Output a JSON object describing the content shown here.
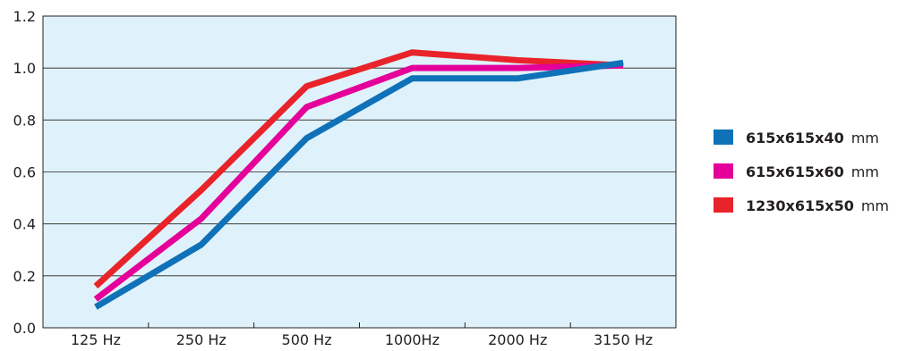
{
  "chart_data": {
    "type": "line",
    "categories": [
      "125 Hz",
      "250 Hz",
      "500 Hz",
      "1000Hz",
      "2000 Hz",
      "3150 Hz"
    ],
    "ylim": [
      0,
      1.2
    ],
    "yticks": [
      "0.0",
      "0.2",
      "0.4",
      "0.6",
      "0.8",
      "1.0",
      "1.2"
    ],
    "grid": true,
    "plot_background": "#dff2fb",
    "legend_position": "right",
    "series": [
      {
        "name": "615x615x40",
        "unit": "mm",
        "color": "#0f71b8",
        "values": [
          0.08,
          0.32,
          0.73,
          0.96,
          0.96,
          1.02
        ]
      },
      {
        "name": "615x615x60",
        "unit": "mm",
        "color": "#e5009a",
        "values": [
          0.11,
          0.42,
          0.85,
          1.0,
          1.0,
          1.01
        ]
      },
      {
        "name": "1230x615x50",
        "unit": "mm",
        "color": "#e8242a",
        "values": [
          0.16,
          0.53,
          0.93,
          1.06,
          1.03,
          1.01
        ]
      }
    ]
  }
}
